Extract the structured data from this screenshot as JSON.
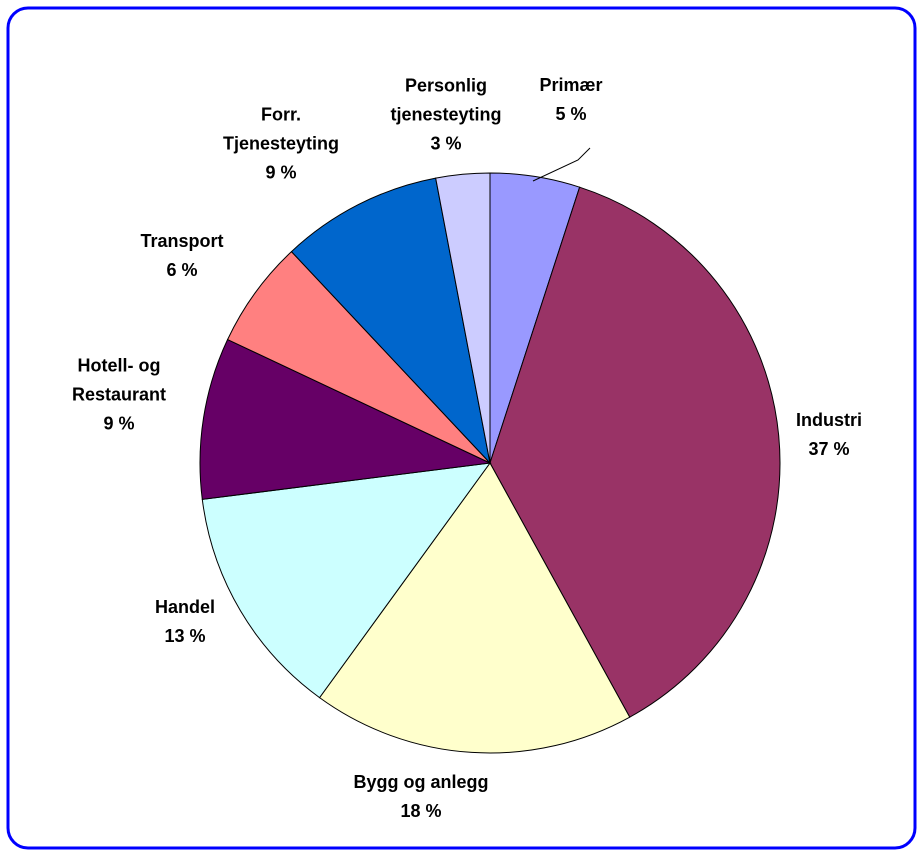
{
  "chart_data": {
    "type": "pie",
    "categories": [
      "Primær",
      "Industri",
      "Bygg og anlegg",
      "Handel",
      "Hotell- og\nRestaurant",
      "Transport",
      "Forr.\nTjenesteyting",
      "Personlig\ntjenesteyting"
    ],
    "values": [
      5,
      37,
      18,
      13,
      9,
      6,
      9,
      3
    ],
    "value_labels": [
      "5 %",
      "37 %",
      "18 %",
      "13 %",
      "9 %",
      "6 %",
      "9 %",
      "3 %"
    ],
    "colors": [
      "#9999ff",
      "#993366",
      "#ffffcc",
      "#ccffff",
      "#660066",
      "#ff8080",
      "#0066cc",
      "#ccccff"
    ]
  }
}
